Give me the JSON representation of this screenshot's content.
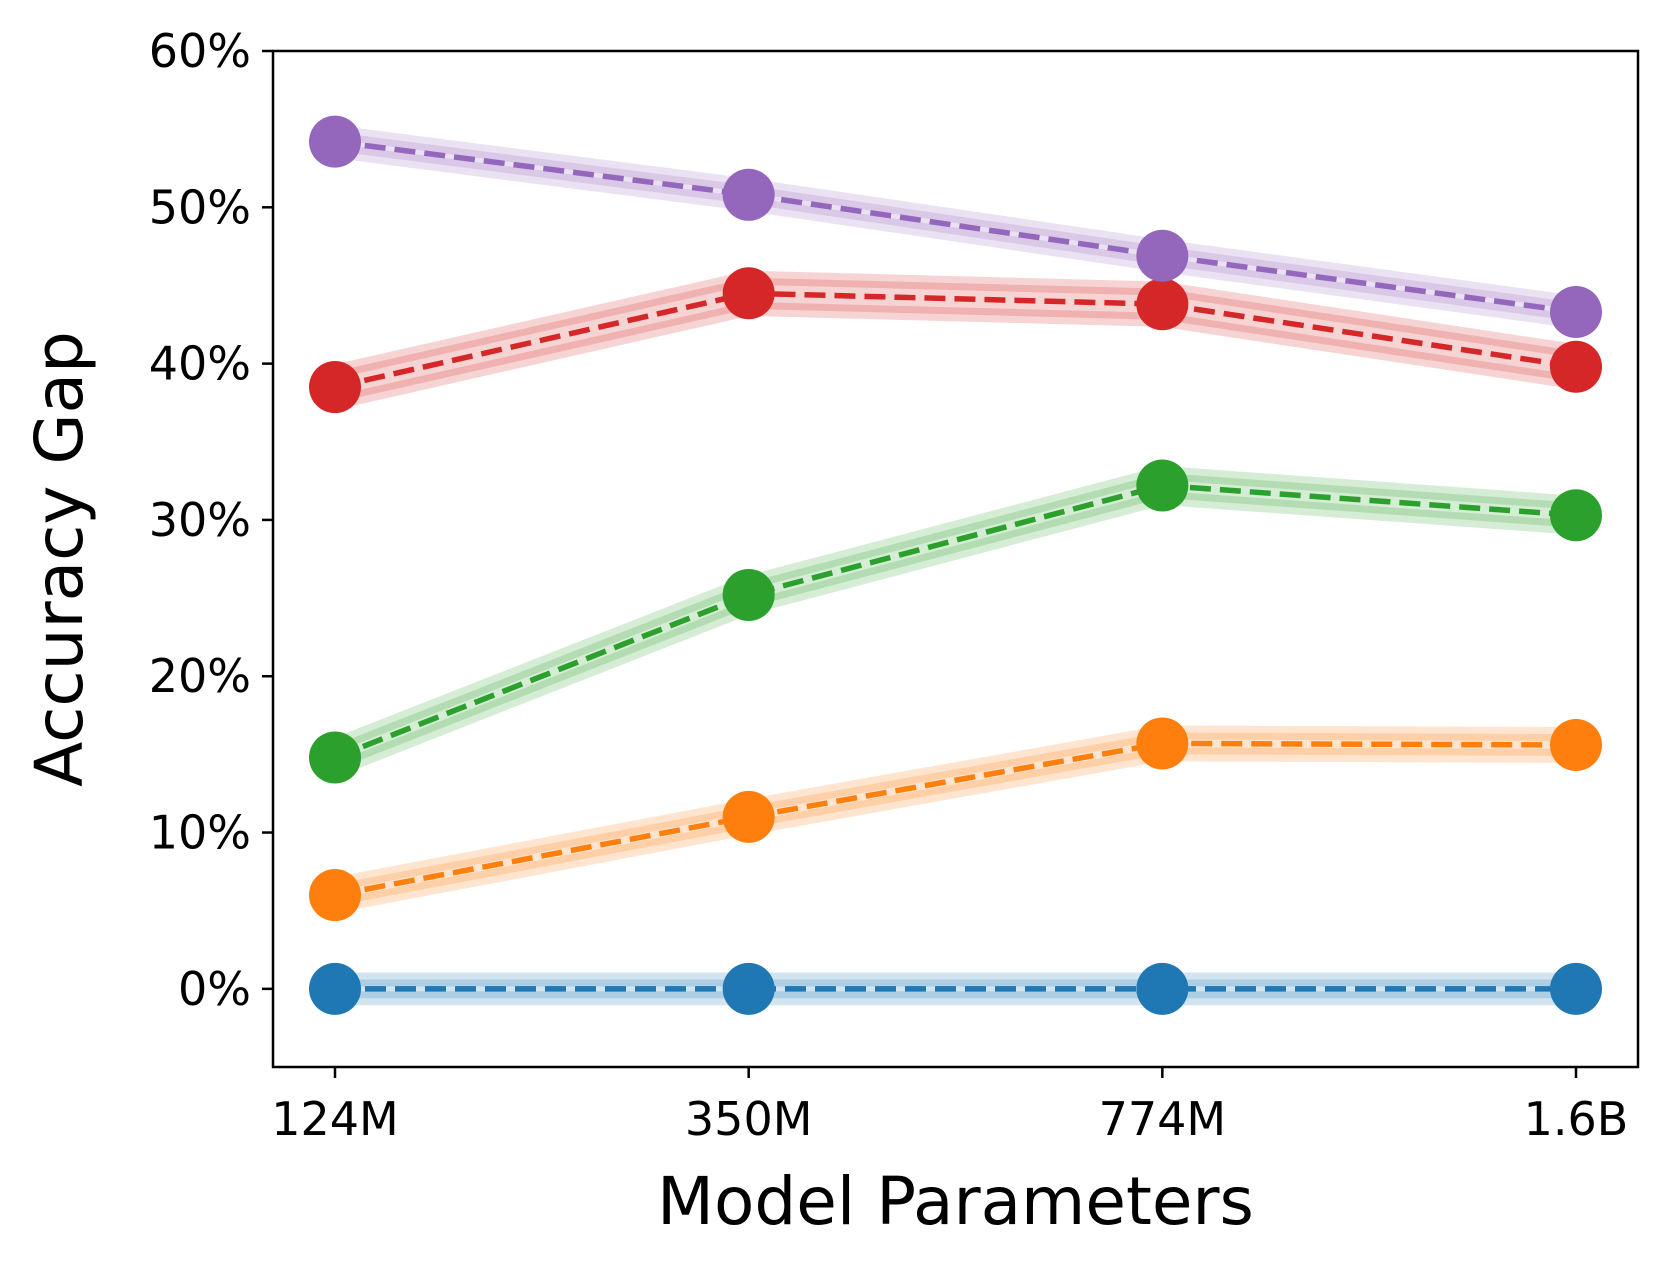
{
  "chart_data": {
    "type": "line",
    "title": "",
    "xlabel": "Model Parameters",
    "ylabel": "Accuracy Gap",
    "categories": [
      "124M",
      "350M",
      "774M",
      "1.6B"
    ],
    "ylim": [
      -5,
      60
    ],
    "yticks": [
      0,
      10,
      20,
      30,
      40,
      50,
      60
    ],
    "ytick_labels": [
      "0%",
      "10%",
      "20%",
      "30%",
      "40%",
      "50%",
      "60%"
    ],
    "grid": false,
    "legend": "none",
    "series": [
      {
        "name": "blue",
        "color": "#1f77b4",
        "values": [
          0.0,
          0.0,
          0.0,
          0.0
        ],
        "band": [
          0.6,
          0.6,
          0.6,
          0.6
        ]
      },
      {
        "name": "orange",
        "color": "#ff7f0e",
        "values": [
          6.0,
          11.0,
          15.7,
          15.6
        ],
        "band": [
          0.7,
          0.7,
          0.7,
          0.7
        ]
      },
      {
        "name": "green",
        "color": "#2ca02c",
        "values": [
          14.8,
          25.2,
          32.2,
          30.3
        ],
        "band": [
          0.8,
          0.8,
          0.8,
          0.8
        ]
      },
      {
        "name": "red",
        "color": "#d62728",
        "values": [
          38.5,
          44.5,
          43.8,
          39.8
        ],
        "band": [
          1.0,
          1.0,
          1.0,
          1.0
        ]
      },
      {
        "name": "purple",
        "color": "#9467bd",
        "values": [
          54.2,
          50.8,
          46.9,
          43.3
        ],
        "band": [
          0.6,
          0.6,
          0.6,
          0.6
        ]
      }
    ]
  }
}
